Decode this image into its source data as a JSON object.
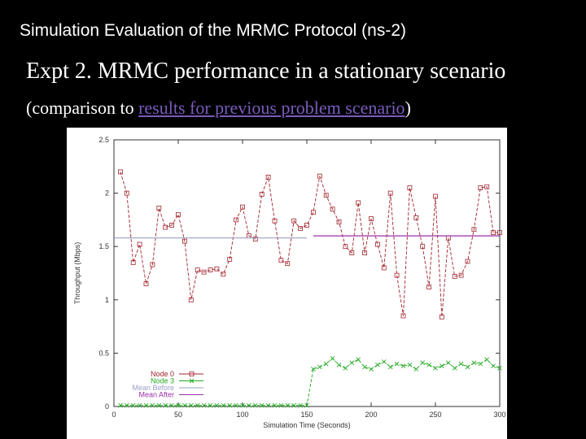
{
  "slide": {
    "title": "Simulation Evaluation of the MRMC Protocol (ns-2)",
    "heading": "Expt 2. MRMC performance in a stationary scenario",
    "sub_open": "(comparison to ",
    "sub_link": "results for previous problem scenario",
    "sub_close": ")"
  },
  "colors": {
    "background": "#000000",
    "text": "#ffffff",
    "link": "#7a5bbd",
    "node0": "#a0242c",
    "node3": "#22aa22",
    "mean_before": "#9aa0c8",
    "mean_after": "#9b2fa8"
  },
  "chart_data": {
    "type": "line",
    "xlabel": "Simulation Time (Seconds)",
    "ylabel": "Throughput (Mbps)",
    "xlim": [
      0,
      300
    ],
    "ylim": [
      0,
      2.5
    ],
    "x_ticks": [
      0,
      50,
      100,
      150,
      200,
      250,
      300
    ],
    "y_ticks": [
      0,
      0.5,
      1,
      1.5,
      2,
      2.5
    ],
    "y_tick_labels": [
      "0",
      "0.5",
      "1",
      "1.5",
      "2",
      "2.5"
    ],
    "legend_position": "bottom-left",
    "grid": false,
    "series": [
      {
        "name": "Node 0",
        "marker": "square",
        "color": "#a0242c",
        "x": [
          5,
          10,
          15,
          20,
          25,
          30,
          35,
          40,
          45,
          50,
          55,
          60,
          65,
          70,
          75,
          80,
          85,
          90,
          95,
          100,
          105,
          110,
          115,
          120,
          125,
          130,
          135,
          140,
          145,
          150,
          155,
          160,
          165,
          170,
          175,
          180,
          185,
          190,
          195,
          200,
          205,
          210,
          215,
          220,
          225,
          230,
          235,
          240,
          245,
          250,
          255,
          260,
          265,
          270,
          275,
          280,
          285,
          290,
          295,
          300
        ],
        "y": [
          2.2,
          2.0,
          1.35,
          1.52,
          1.15,
          1.33,
          1.86,
          1.68,
          1.7,
          1.8,
          1.55,
          1.0,
          1.28,
          1.26,
          1.28,
          1.29,
          1.24,
          1.38,
          1.75,
          1.87,
          1.6,
          1.57,
          1.99,
          2.15,
          1.74,
          1.37,
          1.34,
          1.74,
          1.67,
          1.7,
          1.82,
          2.16,
          1.98,
          1.85,
          1.73,
          1.5,
          1.44,
          1.91,
          1.44,
          1.76,
          1.52,
          1.3,
          2.0,
          1.23,
          0.85,
          2.05,
          1.77,
          1.5,
          1.12,
          1.97,
          0.84,
          1.58,
          1.22,
          1.23,
          1.36,
          1.66,
          2.05,
          2.06,
          1.63,
          1.63
        ]
      },
      {
        "name": "Node 3",
        "marker": "x",
        "color": "#22aa22",
        "x": [
          5,
          10,
          15,
          20,
          25,
          30,
          35,
          40,
          45,
          50,
          55,
          60,
          65,
          70,
          75,
          80,
          85,
          90,
          95,
          100,
          105,
          110,
          115,
          120,
          125,
          130,
          135,
          140,
          145,
          150,
          155,
          160,
          165,
          170,
          175,
          180,
          185,
          190,
          195,
          200,
          205,
          210,
          215,
          220,
          225,
          230,
          235,
          240,
          245,
          250,
          255,
          260,
          265,
          270,
          275,
          280,
          285,
          290,
          295,
          300
        ],
        "y": [
          0.01,
          0.01,
          0.01,
          0.01,
          0.01,
          0.01,
          0.01,
          0.01,
          0.01,
          0.01,
          0.01,
          0.01,
          0.01,
          0.01,
          0.01,
          0.01,
          0.01,
          0.01,
          0.01,
          0.01,
          0.01,
          0.01,
          0.01,
          0.01,
          0.01,
          0.01,
          0.01,
          0.01,
          0.01,
          0.01,
          0.35,
          0.37,
          0.4,
          0.45,
          0.39,
          0.36,
          0.41,
          0.44,
          0.37,
          0.35,
          0.39,
          0.42,
          0.37,
          0.4,
          0.38,
          0.39,
          0.35,
          0.41,
          0.39,
          0.36,
          0.38,
          0.41,
          0.36,
          0.4,
          0.37,
          0.41,
          0.4,
          0.44,
          0.38,
          0.36
        ]
      },
      {
        "name": "Mean Before",
        "color": "#9aa0c8",
        "x": [
          0,
          150
        ],
        "y": [
          1.58,
          1.58
        ]
      },
      {
        "name": "Mean After",
        "color": "#9b2fa8",
        "x": [
          155,
          300
        ],
        "y": [
          1.6,
          1.6
        ]
      }
    ]
  }
}
